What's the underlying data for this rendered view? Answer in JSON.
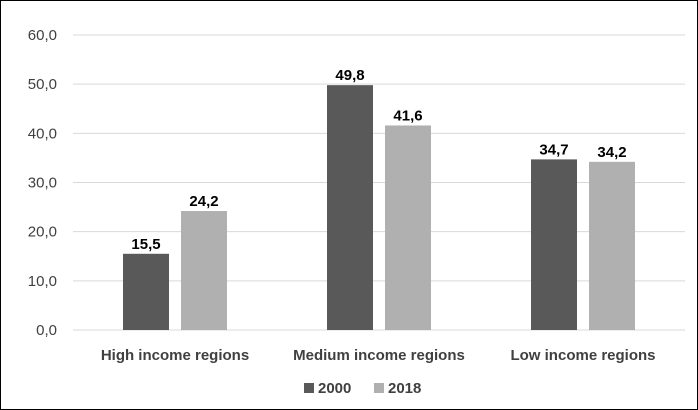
{
  "chart_data": {
    "type": "bar",
    "categories": [
      "High income regions",
      "Medium income regions",
      "Low income regions"
    ],
    "series": [
      {
        "name": "2000",
        "values": [
          15.5,
          49.8,
          34.7
        ],
        "color": "#595959"
      },
      {
        "name": "2018",
        "values": [
          24.2,
          41.6,
          34.2
        ],
        "color": "#b0b0b0"
      }
    ],
    "data_labels": [
      [
        "15,5",
        "49,8",
        "34,7"
      ],
      [
        "24,2",
        "41,6",
        "34,2"
      ]
    ],
    "y_ticks": [
      "0,0",
      "10,0",
      "20,0",
      "30,0",
      "40,0",
      "50,0",
      "60,0"
    ],
    "ylim": [
      0,
      60
    ],
    "title": "",
    "xlabel": "",
    "ylabel": "",
    "grid": true,
    "legend": "bottom-center",
    "gridline_color": "#d9d9d9"
  }
}
